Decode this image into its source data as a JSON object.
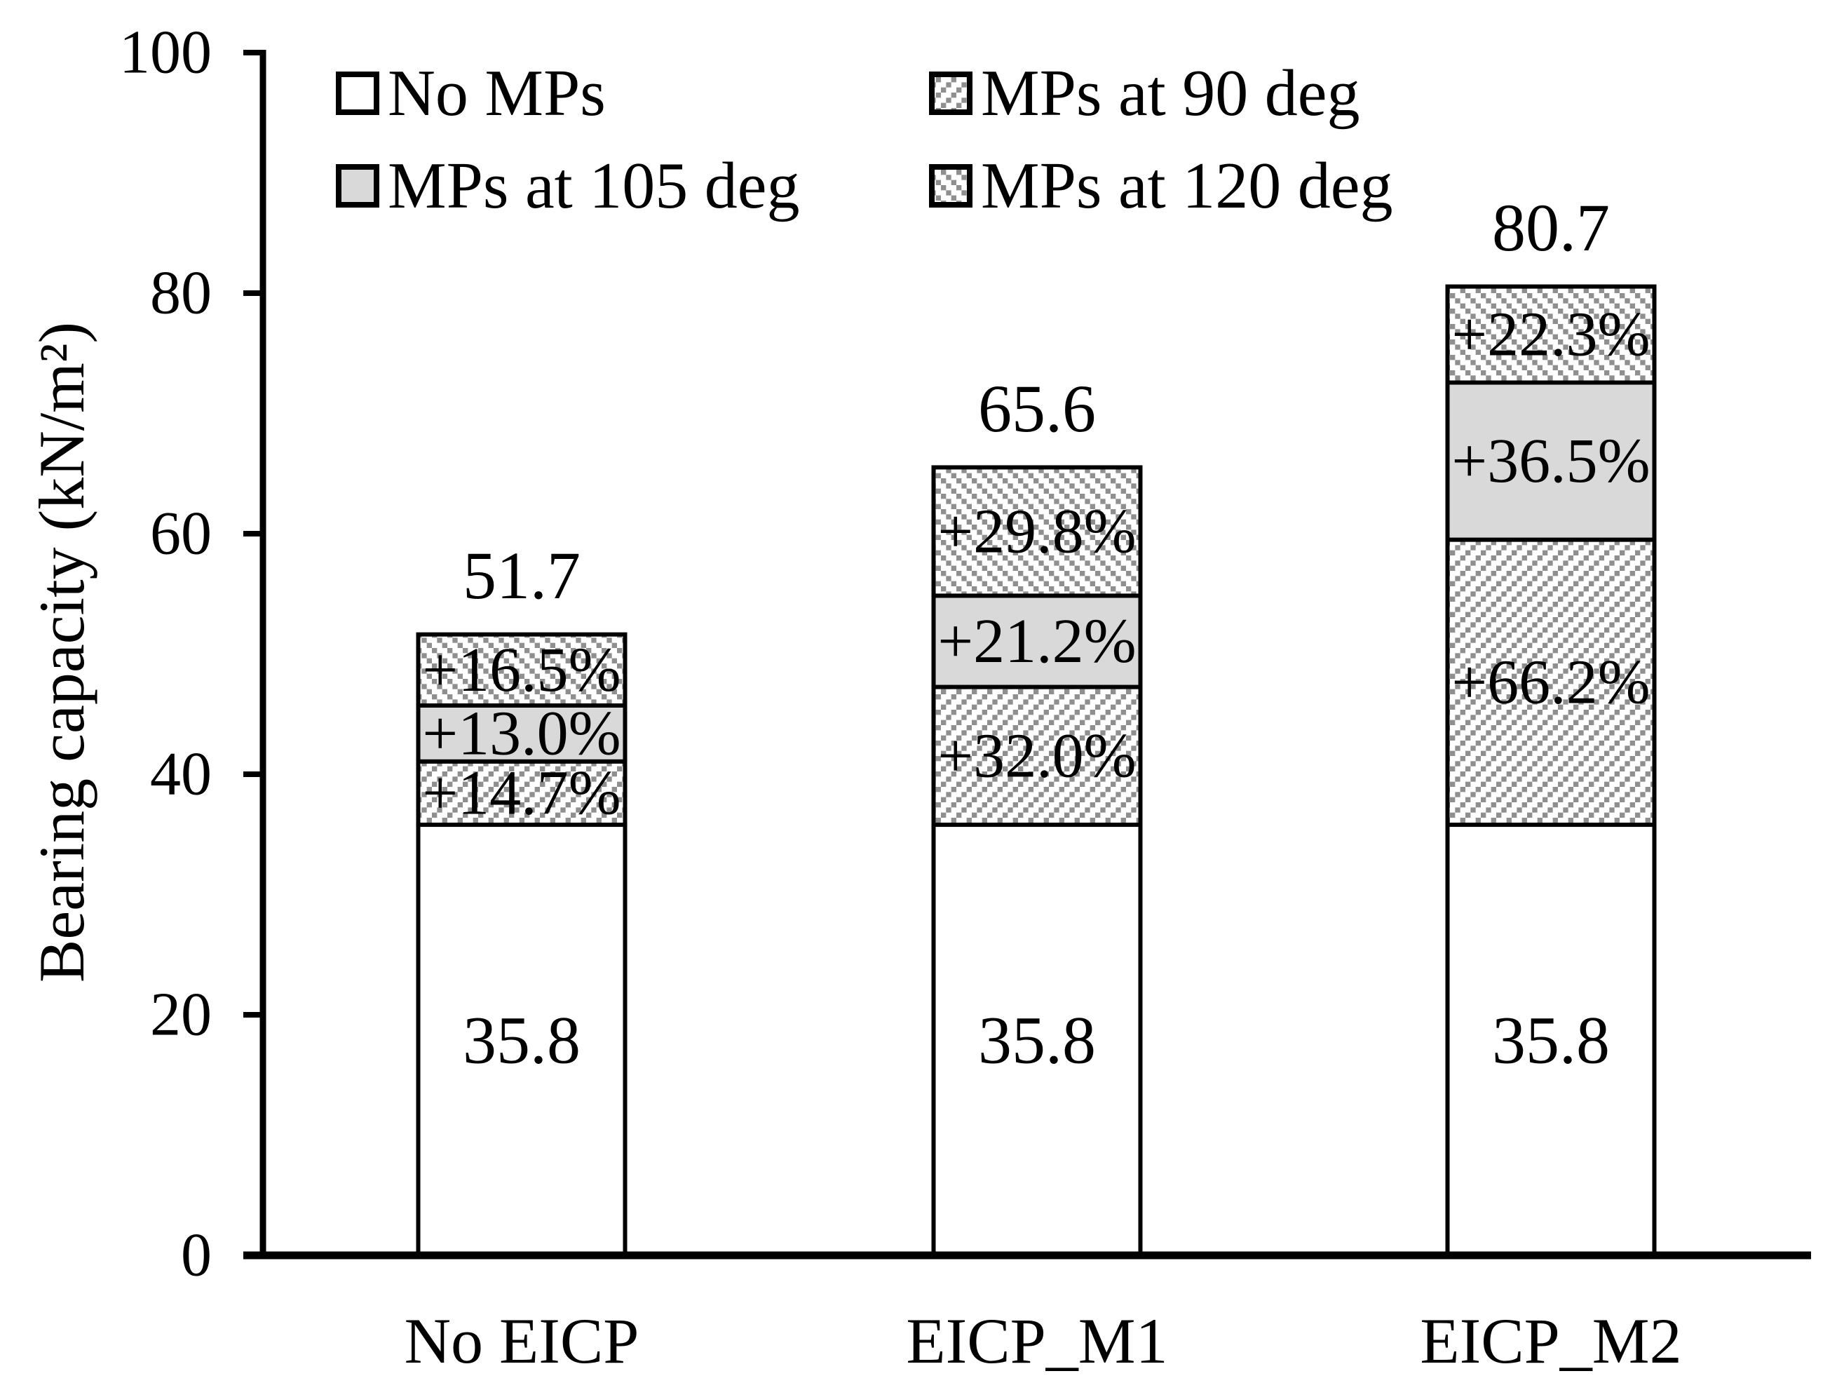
{
  "figure": {
    "background": "#ffffff",
    "y_axis": {
      "title": "Bearing capacity (kN/m²)",
      "tick_labels": [
        "0",
        "20",
        "40",
        "60",
        "80",
        "100"
      ]
    },
    "legend": {
      "items": [
        {
          "label": "No MPs",
          "pattern": "solid-white"
        },
        {
          "label": "MPs at 90 deg",
          "pattern": "hatch-forward"
        },
        {
          "label": "MPs at 105 deg",
          "pattern": "solid-gray"
        },
        {
          "label": "MPs at 120 deg",
          "pattern": "hatch-back"
        }
      ]
    },
    "colors": {
      "gray_fill": "#d9d9d9",
      "hatch_dot": "#8f8f8f",
      "stroke": "#000000",
      "background": "#ffffff"
    }
  },
  "chart_data": {
    "type": "bar",
    "stacked": true,
    "categories": [
      "No EICP",
      "EICP_M1",
      "EICP_M2"
    ],
    "ylabel": "Bearing capacity (kN/m²)",
    "ylim": [
      0,
      100
    ],
    "yticks": [
      0,
      20,
      40,
      60,
      80,
      100
    ],
    "grid": false,
    "legend_position": "top-inside",
    "base_series": {
      "name": "No MPs",
      "values": [
        35.8,
        35.8,
        35.8
      ],
      "labels": [
        "35.8",
        "35.8",
        "35.8"
      ]
    },
    "increment_series": [
      {
        "name": "MPs at 90 deg",
        "pattern": "hatch-forward",
        "pct": [
          14.7,
          32.0,
          66.2
        ],
        "labels": [
          "+14.7%",
          "+32.0%",
          "+66.2%"
        ]
      },
      {
        "name": "MPs at 105 deg",
        "pattern": "solid-gray",
        "pct": [
          13.0,
          21.2,
          36.5
        ],
        "labels": [
          "+13.0%",
          "+21.2%",
          "+36.5%"
        ]
      },
      {
        "name": "MPs at 120 deg",
        "pattern": "hatch-back",
        "pct": [
          16.5,
          29.8,
          22.3
        ],
        "labels": [
          "+16.5%",
          "+29.8%",
          "+22.3%"
        ]
      }
    ],
    "totals": [
      51.7,
      65.6,
      80.7
    ],
    "total_labels": [
      "51.7",
      "65.6",
      "80.7"
    ]
  }
}
